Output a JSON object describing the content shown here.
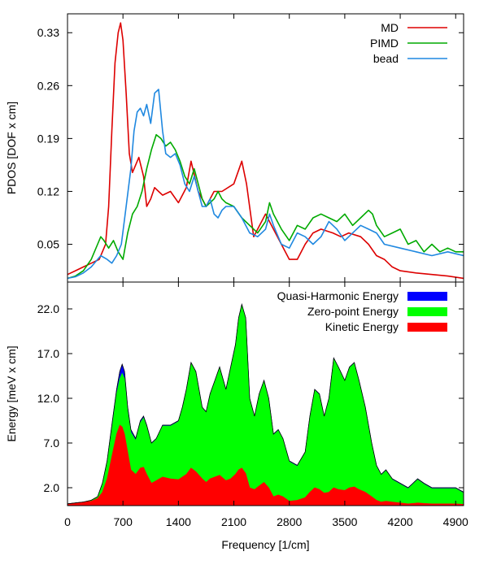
{
  "chart_data": [
    {
      "type": "line",
      "ylabel": "PDOS [DOF x cm]",
      "xlabel": "",
      "xlim": [
        0,
        5000
      ],
      "ylim": [
        0.0,
        0.355
      ],
      "yticks": [
        0.05,
        0.12,
        0.19,
        0.26,
        0.33
      ],
      "ytick_labels": [
        "0.05",
        "0.12",
        "0.19",
        "0.26",
        "0.33"
      ],
      "legend_position": "top-right",
      "series": [
        {
          "name": "MD",
          "color": "#dd0000",
          "x": [
            0,
            100,
            200,
            300,
            400,
            480,
            520,
            560,
            600,
            640,
            670,
            700,
            740,
            780,
            820,
            860,
            900,
            960,
            1000,
            1050,
            1100,
            1150,
            1200,
            1300,
            1400,
            1500,
            1560,
            1650,
            1750,
            1850,
            1950,
            2100,
            2200,
            2260,
            2350,
            2500,
            2650,
            2800,
            2900,
            3000,
            3100,
            3200,
            3350,
            3450,
            3550,
            3700,
            3800,
            3900,
            4000,
            4100,
            4200,
            4400,
            4600,
            4800,
            5000
          ],
          "y": [
            0.01,
            0.015,
            0.02,
            0.025,
            0.03,
            0.05,
            0.1,
            0.2,
            0.29,
            0.33,
            0.343,
            0.32,
            0.25,
            0.17,
            0.145,
            0.155,
            0.165,
            0.14,
            0.1,
            0.11,
            0.125,
            0.12,
            0.115,
            0.12,
            0.105,
            0.125,
            0.16,
            0.12,
            0.1,
            0.12,
            0.12,
            0.13,
            0.16,
            0.13,
            0.06,
            0.09,
            0.06,
            0.03,
            0.03,
            0.05,
            0.065,
            0.07,
            0.065,
            0.06,
            0.065,
            0.06,
            0.05,
            0.035,
            0.03,
            0.02,
            0.015,
            0.012,
            0.01,
            0.008,
            0.005
          ]
        },
        {
          "name": "PIMD",
          "color": "#00aa00",
          "x": [
            0,
            100,
            200,
            300,
            380,
            420,
            460,
            520,
            580,
            640,
            700,
            760,
            820,
            880,
            940,
            1000,
            1060,
            1120,
            1180,
            1240,
            1300,
            1360,
            1420,
            1480,
            1540,
            1600,
            1650,
            1700,
            1750,
            1800,
            1850,
            1900,
            1950,
            2000,
            2100,
            2200,
            2300,
            2400,
            2500,
            2550,
            2600,
            2700,
            2800,
            2900,
            3000,
            3100,
            3200,
            3300,
            3400,
            3500,
            3600,
            3700,
            3800,
            3850,
            3900,
            4000,
            4100,
            4200,
            4300,
            4400,
            4500,
            4600,
            4700,
            4800,
            4900,
            5000
          ],
          "y": [
            0.005,
            0.008,
            0.015,
            0.03,
            0.05,
            0.06,
            0.055,
            0.045,
            0.055,
            0.04,
            0.03,
            0.065,
            0.09,
            0.1,
            0.12,
            0.15,
            0.175,
            0.195,
            0.19,
            0.18,
            0.185,
            0.175,
            0.16,
            0.14,
            0.13,
            0.15,
            0.13,
            0.11,
            0.1,
            0.105,
            0.11,
            0.12,
            0.11,
            0.105,
            0.1,
            0.085,
            0.075,
            0.065,
            0.08,
            0.105,
            0.09,
            0.07,
            0.055,
            0.075,
            0.07,
            0.085,
            0.09,
            0.085,
            0.08,
            0.09,
            0.075,
            0.085,
            0.095,
            0.09,
            0.075,
            0.06,
            0.065,
            0.07,
            0.05,
            0.055,
            0.04,
            0.05,
            0.04,
            0.045,
            0.04,
            0.04
          ]
        },
        {
          "name": "bead",
          "color": "#1f88e0",
          "x": [
            0,
            100,
            200,
            300,
            380,
            420,
            500,
            560,
            620,
            680,
            740,
            800,
            840,
            880,
            920,
            960,
            1000,
            1050,
            1100,
            1150,
            1200,
            1240,
            1300,
            1360,
            1420,
            1480,
            1540,
            1600,
            1650,
            1700,
            1750,
            1800,
            1850,
            1900,
            1950,
            2000,
            2100,
            2200,
            2300,
            2400,
            2500,
            2550,
            2600,
            2700,
            2800,
            2900,
            3000,
            3100,
            3200,
            3300,
            3400,
            3500,
            3600,
            3700,
            3800,
            3900,
            4000,
            4200,
            4400,
            4600,
            4800,
            5000
          ],
          "y": [
            0.005,
            0.007,
            0.012,
            0.02,
            0.03,
            0.035,
            0.03,
            0.025,
            0.035,
            0.05,
            0.1,
            0.15,
            0.2,
            0.225,
            0.23,
            0.22,
            0.235,
            0.21,
            0.25,
            0.255,
            0.2,
            0.17,
            0.165,
            0.17,
            0.155,
            0.13,
            0.12,
            0.14,
            0.12,
            0.1,
            0.1,
            0.11,
            0.09,
            0.085,
            0.095,
            0.1,
            0.1,
            0.085,
            0.065,
            0.06,
            0.07,
            0.09,
            0.075,
            0.05,
            0.045,
            0.065,
            0.06,
            0.05,
            0.06,
            0.08,
            0.07,
            0.055,
            0.065,
            0.075,
            0.07,
            0.065,
            0.05,
            0.045,
            0.04,
            0.035,
            0.04,
            0.035
          ]
        }
      ]
    },
    {
      "type": "area",
      "ylabel": "Energy [meV x cm]",
      "xlabel": "Frequency [1/cm]",
      "xlim": [
        0,
        5000
      ],
      "ylim": [
        0.0,
        25.0
      ],
      "yticks": [
        2.0,
        7.0,
        12.0,
        17.0,
        22.0
      ],
      "ytick_labels": [
        "2.0",
        "7.0",
        "12.0",
        "17.0",
        "22.0"
      ],
      "xticks": [
        0,
        700,
        1400,
        2100,
        2800,
        3500,
        4200,
        4900
      ],
      "xtick_labels": [
        "0",
        "700",
        "1400",
        "2100",
        "2800",
        "3500",
        "4200",
        "4900"
      ],
      "legend_position": "top-right",
      "series": [
        {
          "name": "Quasi-Harmonic Energy",
          "color": "#0000ff",
          "x": [
            0,
            100,
            200,
            300,
            380,
            440,
            500,
            560,
            620,
            660,
            690,
            720,
            760,
            800,
            860,
            920,
            960,
            1000,
            1060,
            1120,
            1200,
            1300,
            1400,
            1450,
            1500,
            1560,
            1620,
            1700,
            1750,
            1800,
            1860,
            1920,
            2000,
            2060,
            2120,
            2160,
            2200,
            2250,
            2300,
            2360,
            2420,
            2480,
            2540,
            2600,
            2660,
            2720,
            2800,
            2900,
            3000,
            3060,
            3120,
            3180,
            3240,
            3300,
            3360,
            3420,
            3500,
            3560,
            3620,
            3680,
            3760,
            3840,
            3900,
            3960,
            4020,
            4100,
            4200,
            4300,
            4360,
            4420,
            4500,
            4600,
            4700,
            4800,
            4900,
            5000
          ],
          "y": [
            0.2,
            0.3,
            0.4,
            0.6,
            1.0,
            2.5,
            5.0,
            9.0,
            13.0,
            15.0,
            15.8,
            15.0,
            11.0,
            8.5,
            7.5,
            9.5,
            10.0,
            9.0,
            7.0,
            7.5,
            9.0,
            9.0,
            9.5,
            11.0,
            13.0,
            16.0,
            15.0,
            11.0,
            10.5,
            12.5,
            14.0,
            15.5,
            13.0,
            15.5,
            18.0,
            21.0,
            22.5,
            21.0,
            12.0,
            10.0,
            12.5,
            14.0,
            12.0,
            8.0,
            8.5,
            7.5,
            5.0,
            4.5,
            6.0,
            10.0,
            13.0,
            12.5,
            10.0,
            12.0,
            16.5,
            15.5,
            14.0,
            15.5,
            16.0,
            14.0,
            11.0,
            7.0,
            4.5,
            3.5,
            4.0,
            3.0,
            2.5,
            2.0,
            2.5,
            3.0,
            2.5,
            2.0,
            2.0,
            2.0,
            2.0,
            1.5
          ]
        },
        {
          "name": "Zero-point Energy",
          "color": "#00ff00",
          "x": [
            0,
            100,
            200,
            300,
            380,
            440,
            500,
            560,
            620,
            660,
            690,
            720,
            760,
            800,
            860,
            920,
            960,
            1000,
            1060,
            1120,
            1200,
            1300,
            1400,
            1450,
            1500,
            1560,
            1620,
            1700,
            1750,
            1800,
            1860,
            1920,
            2000,
            2060,
            2120,
            2160,
            2200,
            2250,
            2300,
            2360,
            2420,
            2480,
            2540,
            2600,
            2660,
            2720,
            2800,
            2900,
            3000,
            3060,
            3120,
            3180,
            3240,
            3300,
            3360,
            3420,
            3500,
            3560,
            3620,
            3680,
            3760,
            3840,
            3900,
            3960,
            4020,
            4100,
            4200,
            4300,
            4360,
            4420,
            4500,
            4600,
            4700,
            4800,
            4900,
            5000
          ],
          "y": [
            0.2,
            0.3,
            0.4,
            0.6,
            1.0,
            2.4,
            4.8,
            8.5,
            12.5,
            14.2,
            14.8,
            14.2,
            10.5,
            8.2,
            7.3,
            9.3,
            9.8,
            8.8,
            6.9,
            7.4,
            8.9,
            8.9,
            9.4,
            10.9,
            12.9,
            15.9,
            14.9,
            10.9,
            10.4,
            12.4,
            13.9,
            15.4,
            12.9,
            15.4,
            17.9,
            20.9,
            22.4,
            20.9,
            11.9,
            9.9,
            12.4,
            13.9,
            11.9,
            7.9,
            8.4,
            7.4,
            4.9,
            4.4,
            5.9,
            9.9,
            12.9,
            12.4,
            9.9,
            11.9,
            16.4,
            15.4,
            13.9,
            15.4,
            15.9,
            13.9,
            10.9,
            6.9,
            4.4,
            3.4,
            3.9,
            2.9,
            2.4,
            1.9,
            2.4,
            2.9,
            2.4,
            1.9,
            1.9,
            1.9,
            1.9,
            1.4
          ]
        },
        {
          "name": "Kinetic Energy",
          "color": "#ff0000",
          "x": [
            0,
            100,
            200,
            300,
            380,
            440,
            500,
            560,
            620,
            660,
            690,
            720,
            760,
            800,
            860,
            920,
            960,
            1000,
            1060,
            1120,
            1200,
            1300,
            1400,
            1450,
            1500,
            1560,
            1620,
            1700,
            1750,
            1800,
            1860,
            1920,
            2000,
            2060,
            2120,
            2160,
            2200,
            2250,
            2300,
            2360,
            2420,
            2480,
            2540,
            2600,
            2660,
            2720,
            2800,
            2900,
            3000,
            3060,
            3120,
            3180,
            3240,
            3300,
            3360,
            3420,
            3500,
            3560,
            3620,
            3680,
            3760,
            3840,
            3900,
            3960,
            4020,
            4100,
            4200,
            4300,
            4360,
            4420,
            4500,
            4600,
            4700,
            4800,
            4900,
            5000
          ],
          "y": [
            0.2,
            0.3,
            0.4,
            0.5,
            0.8,
            1.5,
            3.0,
            5.5,
            8.0,
            9.0,
            8.8,
            8.0,
            6.0,
            4.0,
            3.5,
            4.2,
            4.3,
            3.5,
            2.5,
            2.8,
            3.2,
            3.0,
            2.9,
            3.2,
            3.5,
            4.2,
            3.8,
            3.0,
            2.6,
            3.0,
            3.2,
            3.4,
            2.8,
            3.0,
            3.5,
            4.0,
            4.2,
            3.6,
            2.0,
            1.8,
            2.2,
            2.6,
            2.0,
            1.0,
            1.2,
            1.0,
            0.5,
            0.6,
            0.9,
            1.5,
            2.0,
            1.8,
            1.4,
            1.5,
            2.0,
            1.8,
            1.7,
            2.0,
            2.1,
            1.8,
            1.5,
            1.0,
            0.6,
            0.4,
            0.5,
            0.4,
            0.3,
            0.2,
            0.25,
            0.3,
            0.25,
            0.2,
            0.2,
            0.2,
            0.2,
            0.15
          ]
        }
      ]
    }
  ]
}
